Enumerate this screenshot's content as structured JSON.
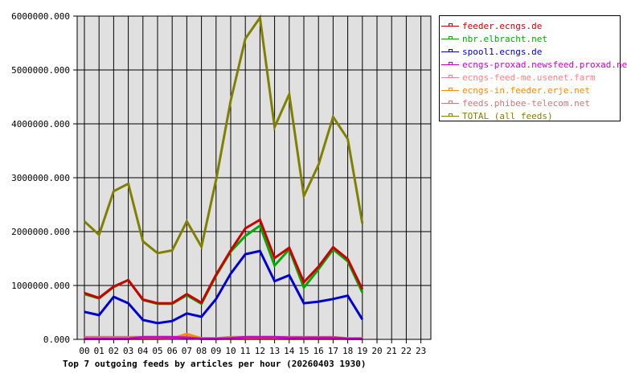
{
  "chart_data": {
    "type": "line",
    "title": "Top 7 outgoing feeds by articles per hour (20260403 1930)",
    "xlabel": "",
    "ylabel": "",
    "x": [
      "00",
      "01",
      "02",
      "03",
      "04",
      "05",
      "06",
      "07",
      "08",
      "09",
      "10",
      "11",
      "12",
      "13",
      "14",
      "15",
      "16",
      "17",
      "18",
      "19",
      "20",
      "21",
      "22",
      "23"
    ],
    "ylim": [
      0,
      6000000
    ],
    "yticks": [
      "0.000",
      "1000000.000",
      "2000000.000",
      "3000000.000",
      "4000000.000",
      "5000000.000",
      "6000000.000"
    ],
    "grid": true,
    "legend_position": "right",
    "series": [
      {
        "name": "feeder.ecngs.de",
        "color": "#cc0000",
        "values": [
          860000,
          770000,
          980000,
          1100000,
          740000,
          670000,
          670000,
          840000,
          680000,
          1200000,
          1650000,
          2060000,
          2220000,
          1510000,
          1700000,
          1060000,
          1350000,
          1710000,
          1490000,
          930000
        ]
      },
      {
        "name": "nbr.elbracht.net",
        "color": "#00aa00",
        "values": [
          840000,
          760000,
          970000,
          1100000,
          730000,
          660000,
          660000,
          820000,
          660000,
          1180000,
          1630000,
          1920000,
          2110000,
          1370000,
          1670000,
          960000,
          1300000,
          1670000,
          1450000,
          870000
        ]
      },
      {
        "name": "spool1.ecngs.de",
        "color": "#0000cc",
        "values": [
          510000,
          450000,
          790000,
          670000,
          360000,
          300000,
          340000,
          480000,
          420000,
          750000,
          1220000,
          1580000,
          1640000,
          1080000,
          1190000,
          670000,
          700000,
          750000,
          810000,
          370000
        ]
      },
      {
        "name": "ecngs-proxad.newsfeed.proxad.net",
        "color": "#cc00cc",
        "values": [
          10000,
          10000,
          10000,
          10000,
          40000,
          40000,
          40000,
          30000,
          10000,
          10000,
          20000,
          40000,
          40000,
          40000,
          30000,
          30000,
          30000,
          30000,
          10000,
          10000
        ]
      },
      {
        "name": "ecngs-feed-me.usenet.farm",
        "color": "#ff8080",
        "values": [
          20000,
          20000,
          20000,
          20000,
          20000,
          20000,
          20000,
          20000,
          20000,
          20000,
          20000,
          20000,
          20000,
          20000,
          20000,
          20000,
          20000,
          20000,
          20000,
          20000
        ]
      },
      {
        "name": "ecngs-in.feeder.erje.net",
        "color": "#ff8800",
        "values": [
          10000,
          10000,
          10000,
          10000,
          10000,
          10000,
          20000,
          100000,
          20000,
          10000,
          10000,
          10000,
          10000,
          10000,
          10000,
          10000,
          10000,
          10000,
          10000,
          10000
        ]
      },
      {
        "name": "feeds.phibee-telecom.net",
        "color": "#cc7777",
        "values": [
          40000,
          40000,
          40000,
          40000,
          40000,
          40000,
          40000,
          40000,
          20000,
          20000,
          40000,
          40000,
          40000,
          40000,
          40000,
          40000,
          40000,
          40000,
          20000,
          20000
        ]
      },
      {
        "name": "TOTAL (all feeds)",
        "color": "#808000",
        "values": [
          2190000,
          1940000,
          2750000,
          2890000,
          1820000,
          1600000,
          1650000,
          2190000,
          1720000,
          2960000,
          4430000,
          5580000,
          5970000,
          3940000,
          4550000,
          2660000,
          3240000,
          4130000,
          3720000,
          2150000
        ]
      }
    ]
  },
  "legend": {
    "items": [
      {
        "label": "feeder.ecngs.de",
        "color": "#cc0000"
      },
      {
        "label": "nbr.elbracht.net",
        "color": "#00aa00"
      },
      {
        "label": "spool1.ecngs.de",
        "color": "#0000cc"
      },
      {
        "label": "ecngs-proxad.newsfeed.proxad.net",
        "color": "#cc00cc"
      },
      {
        "label": "ecngs-feed-me.usenet.farm",
        "color": "#ff8080"
      },
      {
        "label": "ecngs-in.feeder.erje.net",
        "color": "#ff8800"
      },
      {
        "label": "feeds.phibee-telecom.net",
        "color": "#cc7777"
      },
      {
        "label": "TOTAL (all feeds)",
        "color": "#808000"
      }
    ]
  },
  "colors": {
    "plot_background": "#e0e0e0",
    "grid": "#000000",
    "page_background": "#ffffff"
  }
}
